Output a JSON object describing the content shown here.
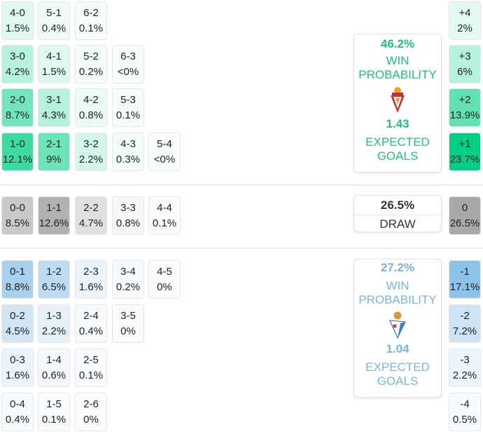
{
  "colors": {
    "home": "#00d084",
    "away": "#5aa7e0",
    "draw": "#8f8f8f",
    "home_text": "#1ec27a",
    "away_text": "#78b4e0"
  },
  "home_rows": [
    {
      "cells": [
        {
          "score": "4-0",
          "pct": "1.5%",
          "p": 1.5
        },
        {
          "score": "5-1",
          "pct": "0.4%",
          "p": 0.4
        },
        {
          "score": "6-2",
          "pct": "0.1%",
          "p": 0.1
        }
      ],
      "margin": {
        "label": "+4",
        "pct": "2%",
        "p": 2
      }
    },
    {
      "cells": [
        {
          "score": "3-0",
          "pct": "4.2%",
          "p": 4.2
        },
        {
          "score": "4-1",
          "pct": "1.5%",
          "p": 1.5
        },
        {
          "score": "5-2",
          "pct": "0.2%",
          "p": 0.2
        },
        {
          "score": "6-3",
          "pct": "<0%",
          "p": 0
        }
      ],
      "margin": {
        "label": "+3",
        "pct": "6%",
        "p": 6
      }
    },
    {
      "cells": [
        {
          "score": "2-0",
          "pct": "8.7%",
          "p": 8.7
        },
        {
          "score": "3-1",
          "pct": "4.3%",
          "p": 4.3
        },
        {
          "score": "4-2",
          "pct": "0.8%",
          "p": 0.8
        },
        {
          "score": "5-3",
          "pct": "0.1%",
          "p": 0.1
        }
      ],
      "margin": {
        "label": "+2",
        "pct": "13.9%",
        "p": 13.9
      }
    },
    {
      "cells": [
        {
          "score": "1-0",
          "pct": "12.1%",
          "p": 12.1
        },
        {
          "score": "2-1",
          "pct": "9%",
          "p": 9
        },
        {
          "score": "3-2",
          "pct": "2.2%",
          "p": 2.2
        },
        {
          "score": "4-3",
          "pct": "0.3%",
          "p": 0.3
        },
        {
          "score": "5-4",
          "pct": "<0%",
          "p": 0
        }
      ],
      "margin": {
        "label": "+1",
        "pct": "23.7%",
        "p": 23.7
      }
    }
  ],
  "draw_row": {
    "cells": [
      {
        "score": "0-0",
        "pct": "8.5%",
        "p": 8.5
      },
      {
        "score": "1-1",
        "pct": "12.6%",
        "p": 12.6
      },
      {
        "score": "2-2",
        "pct": "4.7%",
        "p": 4.7
      },
      {
        "score": "3-3",
        "pct": "0.8%",
        "p": 0.8
      },
      {
        "score": "4-4",
        "pct": "0.1%",
        "p": 0.1
      }
    ],
    "margin": {
      "label": "0",
      "pct": "26.5%",
      "p": 26.5
    }
  },
  "away_rows": [
    {
      "cells": [
        {
          "score": "0-1",
          "pct": "8.8%",
          "p": 8.8
        },
        {
          "score": "1-2",
          "pct": "6.5%",
          "p": 6.5
        },
        {
          "score": "2-3",
          "pct": "1.6%",
          "p": 1.6
        },
        {
          "score": "3-4",
          "pct": "0.2%",
          "p": 0.2
        },
        {
          "score": "4-5",
          "pct": "0%",
          "p": 0
        }
      ],
      "margin": {
        "label": "-1",
        "pct": "17.1%",
        "p": 17.1
      }
    },
    {
      "cells": [
        {
          "score": "0-2",
          "pct": "4.5%",
          "p": 4.5
        },
        {
          "score": "1-3",
          "pct": "2.2%",
          "p": 2.2
        },
        {
          "score": "2-4",
          "pct": "0.4%",
          "p": 0.4
        },
        {
          "score": "3-5",
          "pct": "0%",
          "p": 0
        }
      ],
      "margin": {
        "label": "-2",
        "pct": "7.2%",
        "p": 7.2
      }
    },
    {
      "cells": [
        {
          "score": "0-3",
          "pct": "1.6%",
          "p": 1.6
        },
        {
          "score": "1-4",
          "pct": "0.6%",
          "p": 0.6
        },
        {
          "score": "2-5",
          "pct": "0.1%",
          "p": 0.1
        }
      ],
      "margin": {
        "label": "-3",
        "pct": "2.2%",
        "p": 2.2
      }
    },
    {
      "cells": [
        {
          "score": "0-4",
          "pct": "0.4%",
          "p": 0.4
        },
        {
          "score": "1-5",
          "pct": "0.1%",
          "p": 0.1
        },
        {
          "score": "2-6",
          "pct": "0%",
          "p": 0
        }
      ],
      "margin": {
        "label": "-4",
        "pct": "0.5%",
        "p": 0.5
      }
    }
  ],
  "home_panel": {
    "win_pct": "46.2%",
    "win_label_1": "WIN",
    "win_label_2": "PROBABILITY",
    "xg": "1.43",
    "xg_label_1": "EXPECTED",
    "xg_label_2": "GOALS"
  },
  "draw_panel": {
    "pct": "26.5%",
    "label": "DRAW"
  },
  "away_panel": {
    "win_pct": "27.2%",
    "win_label_1": "WIN",
    "win_label_2": "PROBABILITY",
    "xg": "1.04",
    "xg_label_1": "EXPECTED",
    "xg_label_2": "GOALS"
  }
}
